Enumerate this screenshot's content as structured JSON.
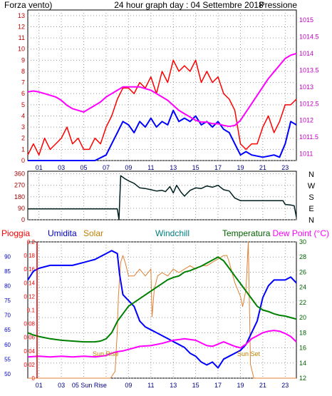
{
  "chart_data": [
    {
      "type": "line",
      "title": "24 hour graph day : 04 Settembre 2018",
      "left_label": "Forza vento)",
      "right_label": "Pressione",
      "x_ticks": [
        "01",
        "03",
        "05",
        "07",
        "09",
        "11",
        "13",
        "15",
        "17",
        "19",
        "21",
        "23"
      ],
      "x_range": [
        0,
        24
      ],
      "left_ticks": [
        "0",
        "1",
        "2",
        "3",
        "4",
        "5",
        "6",
        "7",
        "8",
        "9",
        "10",
        "11",
        "12",
        "13"
      ],
      "left_range": [
        0,
        13.5
      ],
      "right_ticks": [
        "1011",
        "1011.5",
        "1012",
        "1012.5",
        "1013",
        "1013.5",
        "1014",
        "1014.5",
        "1015"
      ],
      "right_range": [
        1010.8,
        1015.3
      ],
      "grid": true,
      "colors": {
        "wind_gust": "#ff0000",
        "wind_avg": "#0000ff",
        "pressure": "#ff00ff",
        "left_axis": "#c00000",
        "right_axis": "#c000c0",
        "title": "#000080"
      },
      "series": [
        {
          "axis": "left",
          "x": [
            0,
            0.5,
            1,
            1.5,
            2,
            2.5,
            3,
            3.5,
            4,
            4.5,
            5,
            5.5,
            6,
            6.5,
            7,
            7.5,
            8,
            8.5,
            9,
            9.5,
            10,
            10.5,
            11,
            11.5,
            12,
            12.5,
            13,
            13.5,
            14,
            14.5,
            15,
            15.5,
            16,
            16.5,
            17,
            17.5,
            18,
            18.5,
            19,
            19.5,
            20,
            20.5,
            21,
            21.5,
            22,
            22.5,
            23,
            23.5,
            24
          ],
          "y": [
            0.5,
            1.5,
            0.5,
            2.0,
            1.0,
            1.5,
            2.0,
            3.0,
            1.5,
            2.0,
            1.0,
            1.0,
            2.0,
            1.5,
            3.0,
            4.0,
            5.5,
            6.5,
            6.5,
            6.0,
            7.0,
            6.5,
            7.5,
            6.0,
            8.0,
            7.0,
            9.0,
            8.0,
            8.5,
            8.0,
            9.0,
            7.0,
            8.0,
            7.0,
            7.5,
            6.0,
            5.5,
            4.5,
            1.5,
            1.0,
            1.5,
            1.5,
            3.0,
            4.0,
            2.5,
            3.5,
            5.0,
            5.0,
            5.5
          ]
        },
        {
          "axis": "left",
          "x": [
            0,
            1,
            2,
            3,
            4,
            5,
            6,
            7,
            7.5,
            8,
            8.5,
            9,
            9.5,
            10,
            10.5,
            11,
            11.5,
            12,
            12.5,
            13,
            13.5,
            14,
            14.5,
            15,
            15.5,
            16,
            16.5,
            17,
            17.5,
            18,
            18.5,
            19,
            19.5,
            20,
            21,
            22,
            22.5,
            23,
            23.5,
            24
          ],
          "y": [
            0,
            0,
            0,
            0,
            0,
            0,
            0,
            0.5,
            1.5,
            2.5,
            3.5,
            3.2,
            2.5,
            3.5,
            3.0,
            3.8,
            3.0,
            3.5,
            3.2,
            4.5,
            3.5,
            3.8,
            3.5,
            4.0,
            3.2,
            3.5,
            3.0,
            3.5,
            2.8,
            2.5,
            1.5,
            0.5,
            0.8,
            0.5,
            0.3,
            0.5,
            0.3,
            1.5,
            3.5,
            3.2
          ]
        },
        {
          "axis": "right",
          "x": [
            0,
            0.5,
            1,
            1.5,
            2,
            2.5,
            3,
            3.5,
            4,
            4.5,
            5,
            5.5,
            6,
            6.5,
            7,
            7.5,
            8,
            8.5,
            9,
            9.5,
            10,
            10.5,
            11,
            11.5,
            12,
            12.5,
            13,
            13.5,
            14,
            14.5,
            15,
            15.5,
            16,
            16.5,
            17,
            17.5,
            18,
            18.5,
            19,
            19.5,
            20,
            20.5,
            21,
            21.5,
            22,
            22.5,
            23,
            23.5,
            24
          ],
          "y": [
            1012.85,
            1012.88,
            1012.85,
            1012.8,
            1012.75,
            1012.7,
            1012.6,
            1012.45,
            1012.35,
            1012.3,
            1012.25,
            1012.35,
            1012.45,
            1012.55,
            1012.7,
            1012.8,
            1012.9,
            1013.0,
            1013.0,
            1013.0,
            1013.0,
            1012.95,
            1012.9,
            1012.8,
            1012.7,
            1012.6,
            1012.45,
            1012.3,
            1012.2,
            1012.1,
            1012.0,
            1011.95,
            1011.95,
            1011.9,
            1011.9,
            1011.85,
            1011.82,
            1011.85,
            1012.0,
            1012.25,
            1012.5,
            1012.75,
            1013.0,
            1013.25,
            1013.45,
            1013.65,
            1013.85,
            1013.95,
            1014.0
          ]
        }
      ]
    },
    {
      "type": "line",
      "direction_labels": [
        "N",
        "W",
        "S",
        "E",
        "N"
      ],
      "y_ticks": [
        "0",
        "90",
        "180",
        "270",
        "360"
      ],
      "y_range": [
        0,
        380
      ],
      "x_range": [
        0,
        24
      ],
      "grid": true,
      "colors": {
        "direction": "#002020",
        "axis_labels": "#a00000"
      },
      "series": [
        {
          "x": [
            0,
            2,
            4,
            6,
            7,
            8,
            8.15,
            8.3,
            8.7,
            9,
            9.5,
            10,
            10.5,
            11,
            11.5,
            12,
            12.3,
            12.7,
            13,
            13.3,
            13.7,
            14,
            14.5,
            15,
            15.5,
            16,
            16.5,
            17,
            17.5,
            18,
            18.5,
            19,
            20,
            21,
            22,
            22.8,
            23,
            23.5,
            23.8,
            24
          ],
          "y": [
            85,
            85,
            85,
            85,
            85,
            85,
            0,
            345,
            320,
            305,
            285,
            250,
            245,
            235,
            225,
            230,
            220,
            260,
            210,
            270,
            215,
            185,
            230,
            250,
            245,
            265,
            255,
            270,
            235,
            225,
            170,
            150,
            150,
            150,
            150,
            150,
            120,
            115,
            110,
            20
          ]
        }
      ]
    },
    {
      "type": "line",
      "labels": {
        "rain": "Pioggia",
        "humidity": "Umidita",
        "solar": "Solar",
        "windchill": "Windchill",
        "temperature": "Temperatura",
        "dewpoint": "Dew Point (°C)"
      },
      "annotations": [
        "Sun Rise",
        "Sun Set"
      ],
      "x_ticks": [
        "01",
        "03",
        "05 Sun Rise",
        "09",
        "11",
        "13",
        "15",
        "17",
        "19",
        "21",
        "23"
      ],
      "x_range": [
        0,
        24
      ],
      "rain_ticks": [
        "0",
        "0.02",
        "0.04",
        "0.06",
        "0.08",
        "0.1",
        "0.12",
        "0.14",
        "0.16",
        "0.18",
        "0.2"
      ],
      "rain_range": [
        0,
        0.2
      ],
      "humidity_ticks": [
        "50",
        "55",
        "60",
        "65",
        "70",
        "75",
        "80",
        "85",
        "90"
      ],
      "humidity_range": [
        48.5,
        95
      ],
      "temp_ticks": [
        "12",
        "14",
        "16",
        "18",
        "20",
        "22",
        "24",
        "26",
        "28",
        "30"
      ],
      "temp_range": [
        12,
        30
      ],
      "grid": true,
      "colors": {
        "rain": "#d00000",
        "humidity": "#0000ff",
        "solar": "#e08030",
        "temperature": "#008000",
        "dewpoint": "#ff00ff",
        "windchill": "#008080",
        "label_solar": "#c08000",
        "label_windchill": "#008080",
        "label_temperature": "#006000",
        "label_dewpoint": "#ff00ff",
        "label_rain": "#ff0000",
        "label_humidity": "#0000c0",
        "right_axis": "#006000"
      },
      "series": [
        {
          "axis": "humidity",
          "x": [
            0,
            0.5,
            1,
            2,
            3,
            4,
            5,
            6,
            6.5,
            7,
            7.5,
            8,
            8.2,
            8.5,
            9,
            9.5,
            10,
            10.5,
            11,
            11.5,
            12,
            12.5,
            13,
            13.5,
            14,
            14.5,
            15,
            15.5,
            16,
            16.5,
            17,
            17.5,
            18,
            18.5,
            19,
            19.5,
            20,
            20.5,
            21,
            21.5,
            22,
            22.5,
            23,
            23.5,
            24
          ],
          "y": [
            82,
            85,
            86,
            87,
            87,
            87,
            88,
            89,
            90,
            91,
            92,
            91,
            84,
            77,
            75,
            73,
            68,
            66,
            65,
            64,
            63,
            62,
            61,
            60,
            59,
            57,
            56,
            54,
            53,
            54,
            52,
            55,
            56,
            57,
            58,
            60,
            64,
            68,
            76,
            80,
            82,
            82,
            82,
            83,
            81
          ]
        },
        {
          "axis": "temp",
          "x": [
            0,
            0.5,
            1,
            2,
            3,
            4,
            5,
            6,
            6.5,
            7,
            7.5,
            8,
            8.5,
            9,
            9.5,
            10,
            10.5,
            11,
            11.5,
            12,
            12.5,
            13,
            13.5,
            14,
            14.5,
            15,
            15.5,
            16,
            16.5,
            17,
            17.5,
            18,
            18.5,
            19,
            19.5,
            20,
            20.5,
            21,
            21.5,
            22,
            22.5,
            23,
            23.5,
            24
          ],
          "y": [
            18.0,
            17.7,
            17.5,
            17.2,
            17.0,
            16.9,
            16.8,
            16.8,
            16.9,
            17.2,
            18.0,
            19.5,
            20.5,
            21.5,
            22.0,
            22.5,
            23.0,
            23.5,
            24.0,
            24.5,
            25.0,
            25.3,
            25.5,
            26.0,
            26.2,
            26.5,
            26.8,
            27.2,
            27.6,
            28.0,
            27.5,
            26.5,
            25.5,
            24.5,
            23.5,
            22.5,
            21.5,
            21.0,
            20.8,
            20.5,
            20.3,
            20.2,
            20.0,
            19.8
          ]
        },
        {
          "axis": "temp",
          "x": [
            0,
            1,
            2,
            3,
            4,
            5,
            6,
            7,
            7.5,
            8,
            8.5,
            9,
            9.5,
            10,
            11,
            12,
            13,
            14,
            15,
            16,
            16.5,
            17,
            17.5,
            18,
            18.5,
            19,
            19.5,
            20,
            20.5,
            21,
            21.5,
            22,
            22.5,
            23,
            23.5,
            24
          ],
          "y": [
            14.8,
            14.9,
            14.8,
            14.9,
            14.8,
            14.9,
            14.8,
            15.0,
            15.3,
            15.5,
            15.6,
            15.8,
            16.0,
            16.2,
            16.3,
            16.6,
            17.0,
            17.2,
            17.0,
            16.3,
            16.2,
            16.5,
            16.8,
            16.5,
            16.2,
            16.0,
            16.5,
            17.2,
            17.6,
            18.0,
            18.2,
            18.3,
            18.2,
            17.9,
            17.5,
            16.8
          ]
        },
        {
          "axis": "rain",
          "x": [
            0,
            7.4,
            7.8,
            8.0,
            8.1,
            8.3,
            8.5,
            8.7,
            9.0,
            9.5,
            10,
            10.5,
            11,
            11.1,
            11.3,
            11.6,
            12,
            12.5,
            13,
            13.5,
            14,
            14.5,
            15,
            15.5,
            16,
            16.5,
            17,
            17.5,
            17.8,
            18,
            18.5,
            19,
            19.2,
            19.5,
            19.7,
            19.9,
            20.2,
            24
          ],
          "y": [
            0,
            0,
            0.01,
            0.07,
            0.12,
            0.17,
            0.18,
            0.17,
            0.15,
            0.15,
            0.16,
            0.15,
            0.16,
            0.09,
            0.13,
            0.15,
            0.155,
            0.15,
            0.16,
            0.155,
            0.16,
            0.165,
            0.16,
            0.165,
            0.165,
            0.17,
            0.175,
            0.18,
            0.18,
            0.17,
            0.14,
            0.12,
            0.105,
            0.13,
            0.2,
            0.02,
            0,
            0
          ]
        }
      ]
    }
  ]
}
